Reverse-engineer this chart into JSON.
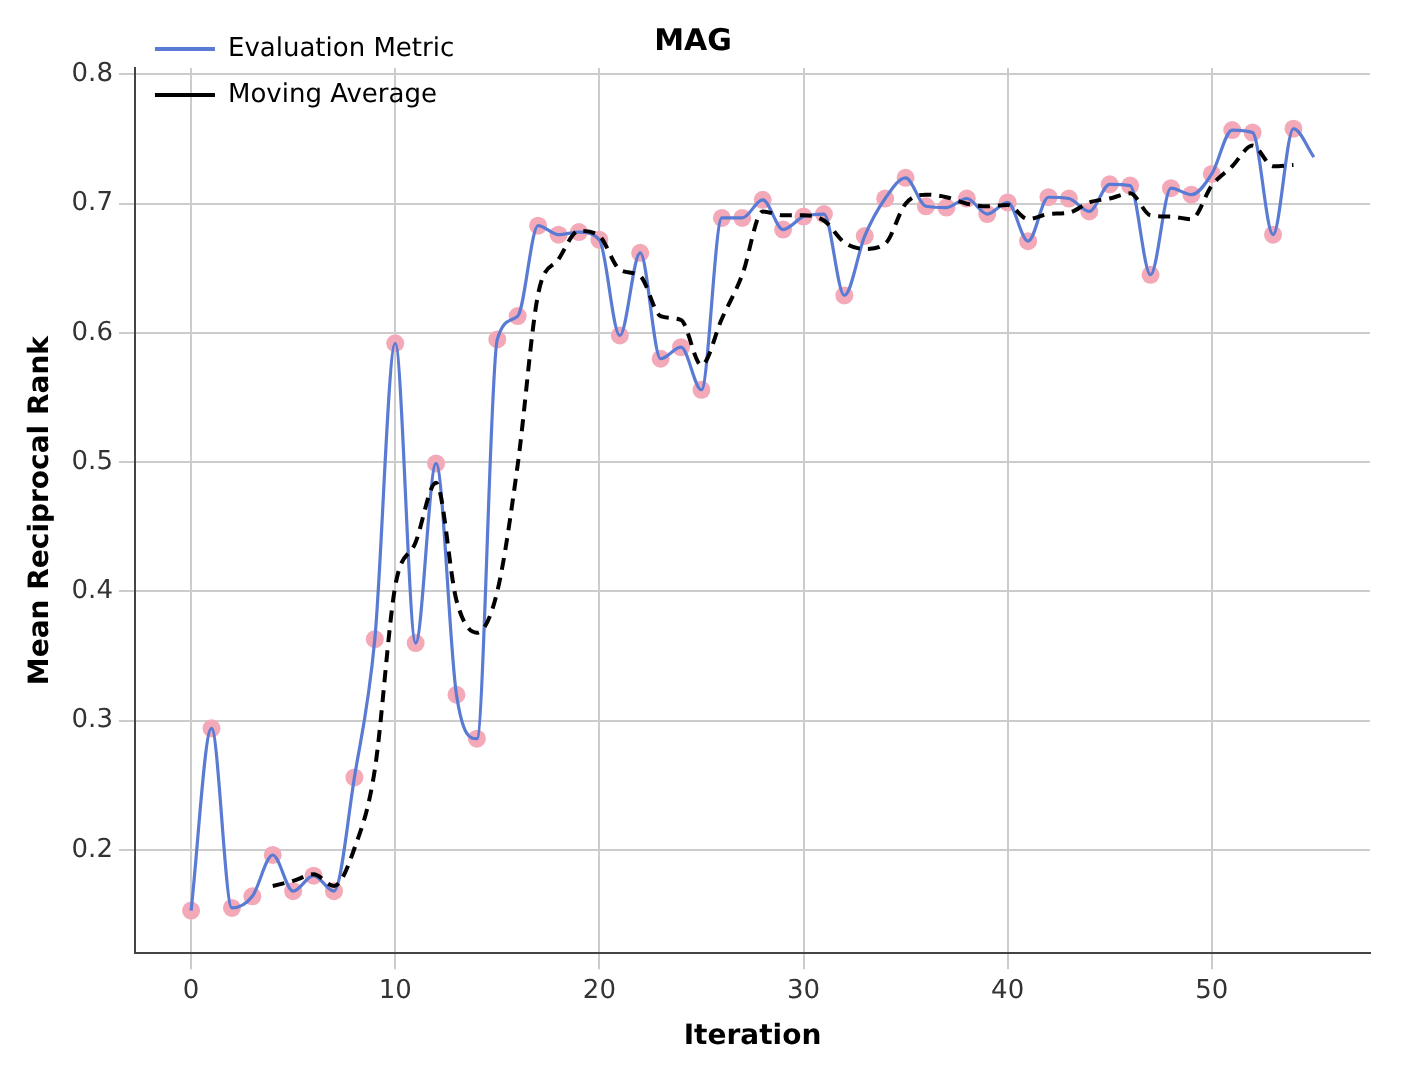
{
  "chart_data": {
    "type": "line",
    "title": "MAG",
    "xlabel": "Iteration",
    "ylabel": "Mean Reciprocal Rank",
    "x": [
      0,
      1,
      2,
      3,
      4,
      5,
      6,
      7,
      8,
      9,
      10,
      11,
      12,
      13,
      14,
      15,
      16,
      17,
      18,
      19,
      20,
      21,
      22,
      23,
      24,
      25,
      26,
      27,
      28,
      29,
      30,
      31,
      32,
      33,
      34,
      35,
      36,
      37,
      38,
      39,
      40,
      41,
      42,
      43,
      44,
      45,
      46,
      47,
      48,
      49,
      50,
      51,
      52,
      53,
      54,
      55
    ],
    "series": [
      {
        "name": "Evaluation Metric",
        "color": "#5a7bd4",
        "marker": "none",
        "line_style": "solid",
        "values": [
          0.153,
          0.294,
          0.155,
          0.164,
          0.196,
          0.168,
          0.18,
          0.168,
          0.256,
          0.363,
          0.592,
          0.36,
          0.499,
          0.32,
          0.286,
          0.595,
          0.613,
          0.683,
          0.676,
          0.678,
          0.672,
          0.598,
          0.662,
          0.58,
          0.589,
          0.556,
          0.689,
          0.689,
          0.703,
          0.68,
          0.69,
          0.692,
          0.629,
          0.675,
          0.704,
          0.72,
          0.698,
          0.697,
          0.704,
          0.692,
          0.701,
          0.671,
          0.705,
          0.704,
          0.694,
          0.715,
          0.714,
          0.645,
          0.712,
          0.707,
          0.723,
          0.757,
          0.755,
          0.676,
          0.758,
          0.736
        ]
      },
      {
        "type": "scatter",
        "color": "#f4a9b8",
        "marker": "circle",
        "values": [
          0.153,
          0.294,
          0.155,
          0.164,
          0.196,
          0.168,
          0.18,
          0.168,
          0.256,
          0.363,
          0.592,
          0.36,
          0.499,
          0.32,
          0.286,
          0.595,
          0.613,
          0.683,
          0.676,
          0.678,
          0.672,
          0.598,
          0.662,
          0.58,
          0.589,
          0.556,
          0.689,
          0.689,
          0.703,
          0.68,
          0.69,
          0.692,
          0.629,
          0.675,
          0.704,
          0.72,
          0.698,
          0.697,
          0.704,
          0.692,
          0.701,
          0.671,
          0.705,
          0.704,
          0.694,
          0.715,
          0.714,
          0.645,
          0.712,
          0.707,
          0.723,
          0.757,
          0.755,
          0.676,
          0.758,
          null
        ]
      },
      {
        "name": "Moving Average",
        "color": "#000000",
        "marker": "none",
        "line_style": "dashed",
        "values": [
          null,
          null,
          null,
          null,
          0.172,
          0.176,
          0.181,
          0.172,
          0.201,
          0.262,
          0.404,
          0.438,
          0.484,
          0.393,
          0.368,
          0.4,
          0.498,
          0.63,
          0.657,
          0.679,
          0.675,
          0.649,
          0.644,
          0.613,
          0.61,
          0.575,
          0.611,
          0.645,
          0.694,
          0.691,
          0.691,
          0.687,
          0.67,
          0.665,
          0.669,
          0.7,
          0.707,
          0.705,
          0.7,
          0.698,
          0.699,
          0.688,
          0.692,
          0.693,
          0.701,
          0.704,
          0.708,
          0.691,
          0.69,
          0.688,
          0.714,
          0.729,
          0.745,
          0.729,
          0.73,
          null
        ]
      }
    ],
    "xlim": [
      -2.75,
      57.75
    ],
    "xticks": [
      0,
      10,
      20,
      30,
      40,
      50
    ],
    "ylim": [
      0.12,
      0.805
    ],
    "yticks": [
      0.2,
      0.3,
      0.4,
      0.5,
      0.6,
      0.7,
      0.8
    ],
    "grid": true,
    "legend": "top left"
  }
}
